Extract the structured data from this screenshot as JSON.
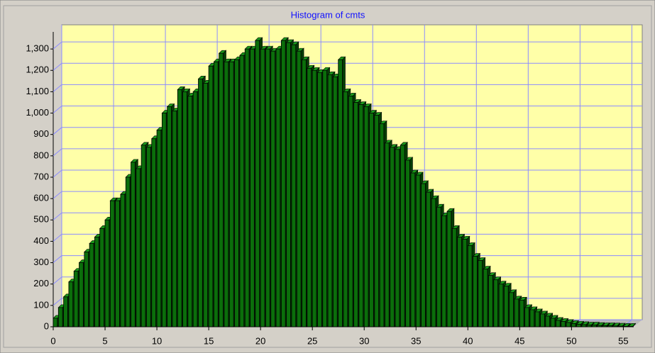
{
  "chart_data": {
    "type": "histogram",
    "title": "Histogram of cmts",
    "bins": [
      0,
      0.5,
      1,
      1.5,
      2,
      2.5,
      3,
      3.5,
      4,
      4.5,
      5,
      5.5,
      6,
      6.5,
      7,
      7.5,
      8,
      8.5,
      9,
      9.5,
      10,
      10.5,
      11,
      11.5,
      12,
      12.5,
      13,
      13.5,
      14,
      14.5,
      15,
      15.5,
      16,
      16.5,
      17,
      17.5,
      18,
      18.5,
      19,
      19.5,
      20,
      20.5,
      21,
      21.5,
      22,
      22.5,
      23,
      23.5,
      24,
      24.5,
      25,
      25.5,
      26,
      26.5,
      27,
      27.5,
      28,
      28.5,
      29,
      29.5,
      30,
      30.5,
      31,
      31.5,
      32,
      32.5,
      33,
      33.5,
      34,
      34.5,
      35,
      35.5,
      36,
      36.5,
      37,
      37.5,
      38,
      38.5,
      39,
      39.5,
      40,
      40.5,
      41,
      41.5,
      42,
      42.5,
      43,
      43.5,
      44,
      44.5,
      45,
      45.5,
      46,
      46.5,
      47,
      47.5,
      48,
      48.5,
      49,
      49.5,
      50,
      50.5,
      51,
      51.5,
      52,
      52.5,
      53,
      53.5,
      54,
      54.5,
      55,
      55.5,
      56
    ],
    "values": [
      40,
      90,
      140,
      210,
      260,
      300,
      350,
      390,
      420,
      460,
      500,
      590,
      590,
      620,
      700,
      770,
      740,
      850,
      840,
      880,
      920,
      1000,
      1030,
      1010,
      1110,
      1100,
      1080,
      1100,
      1160,
      1140,
      1220,
      1240,
      1280,
      1240,
      1240,
      1250,
      1270,
      1300,
      1300,
      1340,
      1300,
      1300,
      1290,
      1300,
      1340,
      1330,
      1320,
      1290,
      1250,
      1210,
      1200,
      1190,
      1200,
      1180,
      1170,
      1250,
      1100,
      1080,
      1050,
      1040,
      1030,
      1000,
      990,
      950,
      860,
      840,
      830,
      850,
      780,
      720,
      710,
      670,
      630,
      600,
      560,
      520,
      540,
      460,
      420,
      410,
      380,
      330,
      310,
      270,
      240,
      220,
      200,
      190,
      160,
      130,
      125,
      90,
      80,
      70,
      60,
      50,
      40,
      30,
      25,
      20,
      15,
      12,
      10,
      8,
      8,
      6,
      5,
      5,
      4,
      3,
      2,
      2
    ],
    "color": "#0b6e0b",
    "xlim": [
      0,
      56
    ],
    "xticks": [
      0,
      5,
      10,
      15,
      20,
      25,
      30,
      35,
      40,
      45,
      50,
      55
    ],
    "ylim": [
      0,
      1380
    ],
    "yticks": [
      0,
      100,
      200,
      300,
      400,
      500,
      600,
      700,
      800,
      900,
      {
        "value": 1000,
        "label": "1,000"
      },
      {
        "value": 1100,
        "label": "1,100"
      },
      {
        "value": 1200,
        "label": "1,200"
      },
      {
        "value": 1300,
        "label": "1,300"
      }
    ],
    "grid": true
  }
}
